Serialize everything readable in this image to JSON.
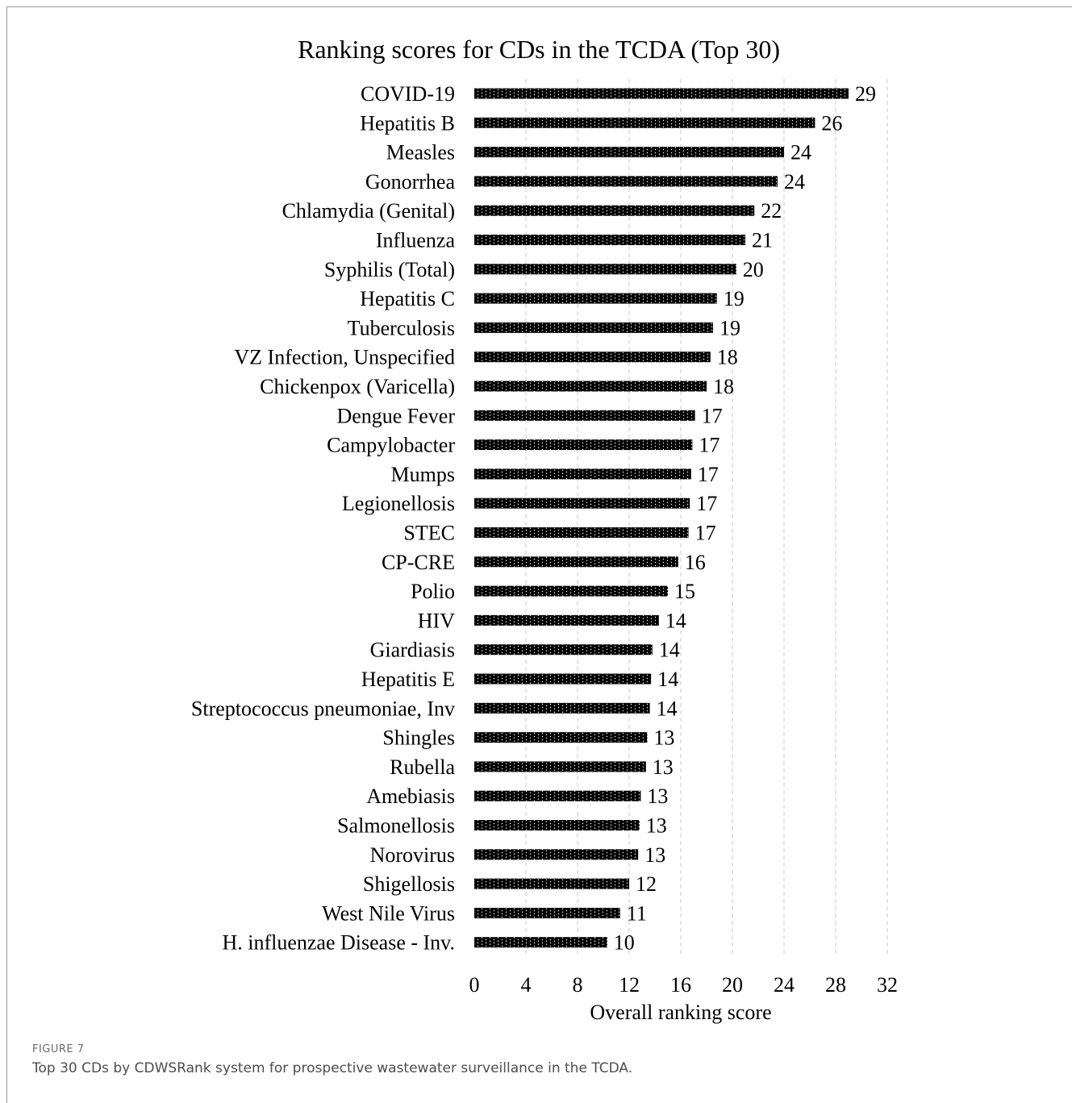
{
  "figure": {
    "label": "FIGURE 7",
    "caption": "Top 30 CDs by CDWSRank system for prospective wastewater surveillance in the TCDA."
  },
  "chart_data": {
    "type": "bar",
    "orientation": "horizontal",
    "title": "Ranking scores for CDs in the TCDA (Top 30)",
    "xlabel": "Overall ranking score",
    "ylabel": "",
    "xlim": [
      0,
      32
    ],
    "xticks": [
      "0",
      "4",
      "8",
      "12",
      "16",
      "20",
      "24",
      "28",
      "32"
    ],
    "grid": "vertical dashed",
    "bar_color": "#000000",
    "categories": [
      "COVID-19",
      "Hepatitis B",
      "Measles",
      "Gonorrhea",
      "Chlamydia (Genital)",
      "Influenza",
      "Syphilis (Total)",
      "Hepatitis C",
      "Tuberculosis",
      "VZ Infection, Unspecified",
      "Chickenpox (Varicella)",
      "Dengue Fever",
      "Campylobacter",
      "Mumps",
      "Legionellosis",
      "STEC",
      "CP-CRE",
      "Polio",
      "HIV",
      "Giardiasis",
      "Hepatitis E",
      "Streptococcus pneumoniae, Inv",
      "Shingles",
      "Rubella",
      "Amebiasis",
      "Salmonellosis",
      "Norovirus",
      "Shigellosis",
      "West Nile Virus",
      "H. influenzae Disease - Inv."
    ],
    "values": [
      29.0,
      26.4,
      24.0,
      23.5,
      21.7,
      21.0,
      20.3,
      18.8,
      18.5,
      18.3,
      18.0,
      17.1,
      16.9,
      16.8,
      16.7,
      16.6,
      15.8,
      15.0,
      14.3,
      13.8,
      13.7,
      13.6,
      13.4,
      13.3,
      12.9,
      12.8,
      12.7,
      12.0,
      11.3,
      10.3
    ],
    "data_labels": [
      "29",
      "26",
      "24",
      "24",
      "22",
      "21",
      "20",
      "19",
      "19",
      "18",
      "18",
      "17",
      "17",
      "17",
      "17",
      "17",
      "16",
      "15",
      "14",
      "14",
      "14",
      "14",
      "13",
      "13",
      "13",
      "13",
      "13",
      "12",
      "11",
      "10"
    ]
  }
}
